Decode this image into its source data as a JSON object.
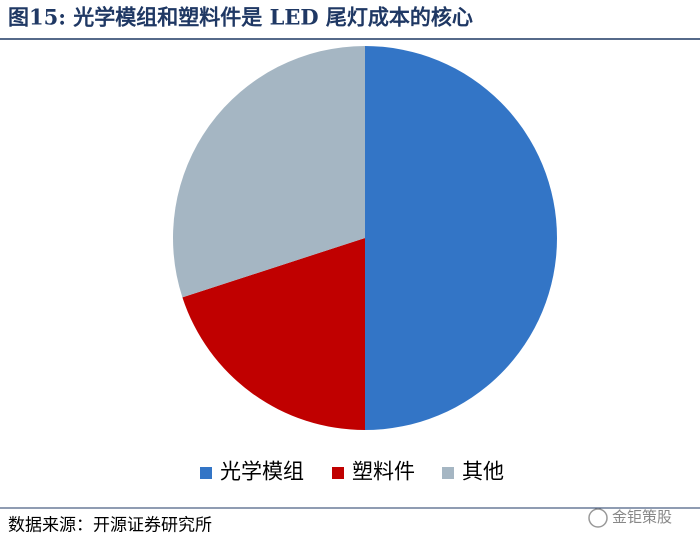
{
  "chart_data": {
    "type": "pie",
    "title": "图15:  光学模组和塑料件是 LED 尾灯成本的核心",
    "categories": [
      "光学模组",
      "塑料件",
      "其他"
    ],
    "values": [
      50,
      20,
      30
    ],
    "colors": [
      "#3375c6",
      "#c00000",
      "#a5b6c3"
    ],
    "legend": "bottom"
  },
  "source": "数据来源：开源证券研究所",
  "watermark": "金钜策股"
}
